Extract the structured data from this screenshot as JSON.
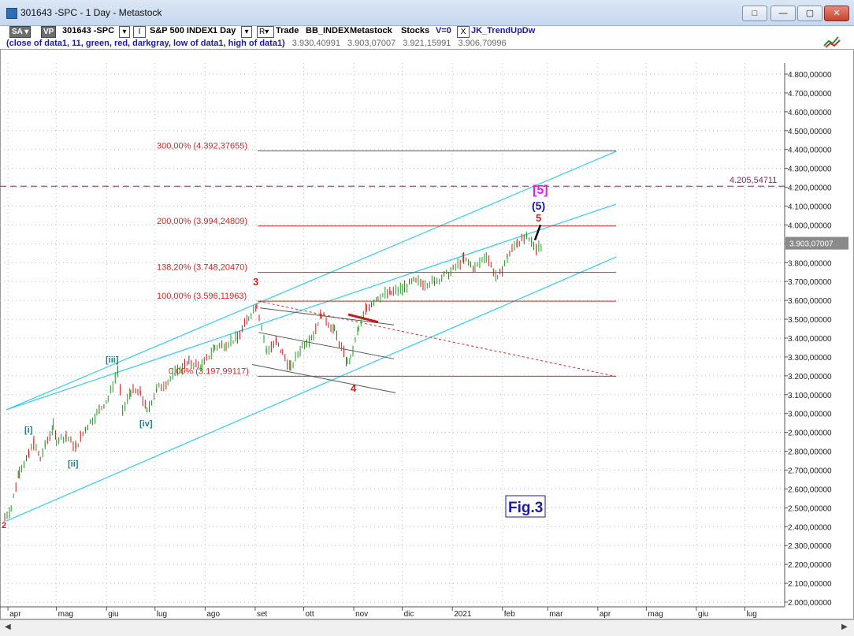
{
  "window": {
    "title": "301643 -SPC - 1 Day - Metastock",
    "buttons": [
      "restore",
      "minimize",
      "maximize",
      "close"
    ]
  },
  "toolbar": {
    "sa_label": "SA",
    "vp_label": "VP",
    "symbol": "301643 -SPC",
    "i_label": "I",
    "instrument": "S&P 500 INDEX",
    "interval": "1 Day",
    "r_label": "R",
    "trade_label": "Trade",
    "exchange": "BB_INDEX",
    "source": "Metastock",
    "category": "Stocks",
    "v_label": "V=0",
    "indicator_x": "X",
    "indicator": "JK_TrendUpDw"
  },
  "formula_row": {
    "formula": "(close of data1, 11, green, red, darkgray, low of data1, high of data1)",
    "values": [
      "3.930,40991",
      "3.903,07007",
      "3.921,15991",
      "3.906,70996"
    ]
  },
  "chart_data": {
    "type": "line",
    "title": "",
    "xlabel": "",
    "ylabel": "",
    "x_tick_labels": [
      "apr",
      "mag",
      "giu",
      "lug",
      "ago",
      "set",
      "ott",
      "nov",
      "dic",
      "2021",
      "feb",
      "mar",
      "apr",
      "mag",
      "giu",
      "lug"
    ],
    "y_tick_labels": [
      "4.800,00000",
      "4.700,00000",
      "4.600,00000",
      "4.500,00000",
      "4.400,00000",
      "4.300,00000",
      "4.200,00000",
      "4.100,00000",
      "4.000,00000",
      "3.900,00000",
      "3.800,00000",
      "3.700,00000",
      "3.600,00000",
      "3.500,00000",
      "3.400,00000",
      "3.300,00000",
      "3.200,00000",
      "3.100,00000",
      "3.000,00000",
      "2.900,00000",
      "2.800,00000",
      "2.700,00000",
      "2.600,00000",
      "2.500,00000",
      "2.400,00000",
      "2.300,00000",
      "2.200,00000",
      "2.100,00000",
      "2.000,00000"
    ],
    "ylim": [
      1990,
      4880
    ],
    "grid": true,
    "series": [
      {
        "values": [
          [
            "2020-03-30",
            2450
          ],
          [
            "2020-04-03",
            2500
          ],
          [
            "2020-04-08",
            2700
          ],
          [
            "2020-04-14",
            2780
          ],
          [
            "2020-04-17",
            2850
          ],
          [
            "2020-04-21",
            2760
          ],
          [
            "2020-04-24",
            2830
          ],
          [
            "2020-04-29",
            2930
          ],
          [
            "2020-05-01",
            2860
          ],
          [
            "2020-05-07",
            2880
          ],
          [
            "2020-05-13",
            2820
          ],
          [
            "2020-05-19",
            2920
          ],
          [
            "2020-05-26",
            3000
          ],
          [
            "2020-06-02",
            3080
          ],
          [
            "2020-06-08",
            3230
          ],
          [
            "2020-06-11",
            3000
          ],
          [
            "2020-06-16",
            3120
          ],
          [
            "2020-06-22",
            3110
          ],
          [
            "2020-06-26",
            3010
          ],
          [
            "2020-07-02",
            3130
          ],
          [
            "2020-07-09",
            3170
          ],
          [
            "2020-07-15",
            3230
          ],
          [
            "2020-07-22",
            3270
          ],
          [
            "2020-07-30",
            3250
          ],
          [
            "2020-08-07",
            3350
          ],
          [
            "2020-08-14",
            3370
          ],
          [
            "2020-08-21",
            3400
          ],
          [
            "2020-08-28",
            3510
          ],
          [
            "2020-09-02",
            3580
          ],
          [
            "2020-09-08",
            3330
          ],
          [
            "2020-09-14",
            3380
          ],
          [
            "2020-09-18",
            3320
          ],
          [
            "2020-09-23",
            3240
          ],
          [
            "2020-09-30",
            3360
          ],
          [
            "2020-10-07",
            3420
          ],
          [
            "2020-10-12",
            3530
          ],
          [
            "2020-10-20",
            3440
          ],
          [
            "2020-10-28",
            3270
          ],
          [
            "2020-10-30",
            3290
          ],
          [
            "2020-11-04",
            3450
          ],
          [
            "2020-11-09",
            3560
          ],
          [
            "2020-11-16",
            3620
          ],
          [
            "2020-11-24",
            3640
          ],
          [
            "2020-12-01",
            3660
          ],
          [
            "2020-12-08",
            3700
          ],
          [
            "2020-12-15",
            3690
          ],
          [
            "2020-12-21",
            3700
          ],
          [
            "2020-12-31",
            3750
          ],
          [
            "2021-01-08",
            3820
          ],
          [
            "2021-01-15",
            3770
          ],
          [
            "2021-01-22",
            3840
          ],
          [
            "2021-01-29",
            3710
          ],
          [
            "2021-02-04",
            3830
          ],
          [
            "2021-02-10",
            3910
          ],
          [
            "2021-02-16",
            3930
          ],
          [
            "2021-02-22",
            3880
          ],
          [
            "2021-02-26",
            3900
          ]
        ]
      }
    ],
    "annotations": [
      {
        "text": "300,00% (4.392,37655)",
        "value": 4392.37655
      },
      {
        "text": "200,00% (3.994,24809)",
        "value": 3994.24809
      },
      {
        "text": "138,20% (3.748,20470)",
        "value": 3748.2047
      },
      {
        "text": "100,00% (3.596,11963)",
        "value": 3596.11963
      },
      {
        "text": "0,00% (3.197,99117)",
        "value": 3197.99117
      },
      {
        "text": "4.205,54711",
        "value": 4205.54711
      },
      {
        "text": "3.903,07007",
        "value": 3903.07007
      }
    ],
    "wave_labels": [
      "2",
      "[i]",
      "[ii]",
      "[iii]",
      "[iv]",
      "3",
      "4",
      "5",
      "(5)",
      "[5]"
    ],
    "figure_label": "Fig.3"
  },
  "colors": {
    "bars_up": "#19a219",
    "bars_down": "#c81818",
    "channel": "#33ccee",
    "fib": "#d72424",
    "dashed": "#7a2a6a",
    "wave_red": "#d42020",
    "wave_teal": "#1e8080",
    "wave_blue": "#1616a8",
    "wave_magenta": "#e020e0"
  }
}
